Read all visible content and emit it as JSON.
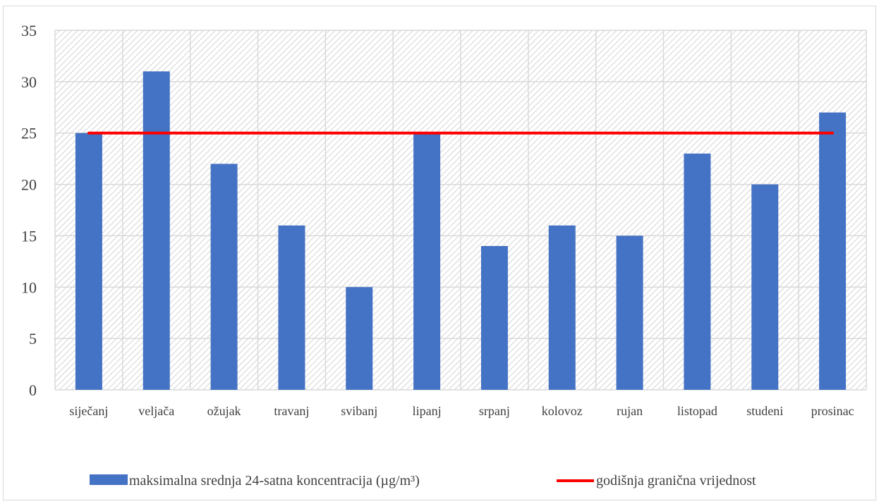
{
  "chart_data": {
    "type": "bar",
    "title": "",
    "xlabel": "",
    "ylabel": "",
    "categories": [
      "siječanj",
      "veljača",
      "ožujak",
      "travanj",
      "svibanj",
      "lipanj",
      "srpanj",
      "kolovoz",
      "rujan",
      "listopad",
      "studeni",
      "prosinac"
    ],
    "series": [
      {
        "name": "maksimalna srednja 24-satna koncentracija (µg/m³)",
        "type": "bar",
        "color": "#4472c4",
        "values": [
          25,
          31,
          22,
          16,
          10,
          25,
          14,
          16,
          15,
          23,
          20,
          27
        ]
      },
      {
        "name": "godišnja granična vrijednost",
        "type": "line",
        "color": "#ff0000",
        "values": [
          25,
          25,
          25,
          25,
          25,
          25,
          25,
          25,
          25,
          25,
          25,
          25
        ]
      }
    ],
    "ylim": [
      0,
      35
    ],
    "yticks": [
      0,
      5,
      10,
      15,
      20,
      25,
      30,
      35
    ],
    "grid": true,
    "plot_background": "hatched light gray",
    "legend_position": "bottom"
  }
}
